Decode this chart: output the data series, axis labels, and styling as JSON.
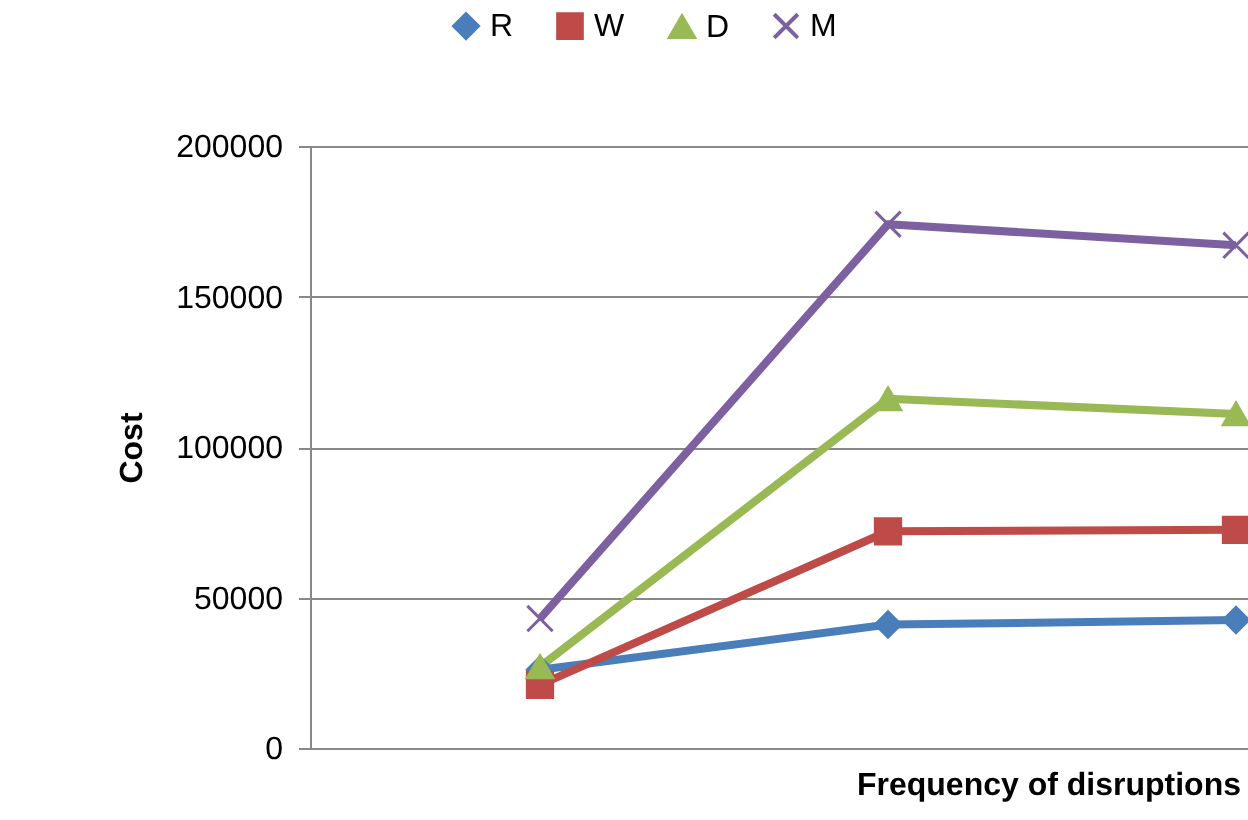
{
  "chart_data": {
    "type": "line",
    "xlabel": "Frequency of disruptions",
    "ylabel": "Cost",
    "categories": [
      null,
      null,
      null
    ],
    "series": [
      {
        "name": "R",
        "color": "#4a7ebb",
        "marker": "diamond",
        "values": [
          26000,
          41000,
          42500
        ]
      },
      {
        "name": "W",
        "color": "#be4b48",
        "marker": "square",
        "values": [
          21000,
          72000,
          72500
        ]
      },
      {
        "name": "D",
        "color": "#98b954",
        "marker": "triangle",
        "values": [
          27000,
          116000,
          111000
        ]
      },
      {
        "name": "M",
        "color": "#7d60a0",
        "marker": "cross",
        "values": [
          43000,
          174000,
          167000
        ]
      }
    ],
    "ylim": [
      0,
      200000
    ],
    "yticks": [
      0,
      50000,
      100000,
      150000,
      200000
    ],
    "grid": "y",
    "legend": "top",
    "line_style": "solid"
  }
}
